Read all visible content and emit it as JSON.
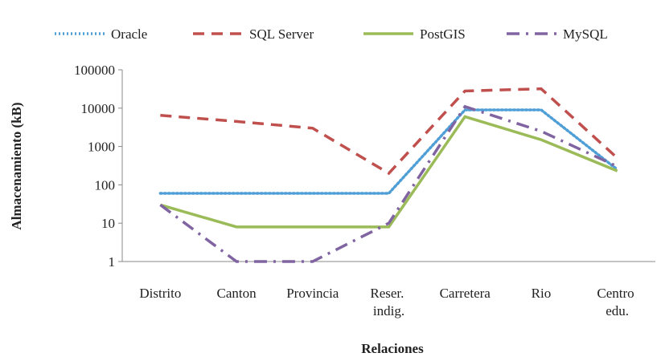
{
  "chart_data": {
    "type": "line",
    "x_label": "Relaciones",
    "y_label": "Almacenamiento (kB)",
    "categories": [
      "Distrito",
      "Canton",
      "Provincia",
      "Reser. indig.",
      "Carretera",
      "Rio",
      "Centro edu."
    ],
    "series": [
      {
        "name": "Oracle",
        "color": "#4f9fd6",
        "style": "dotted",
        "values": [
          60,
          60,
          60,
          60,
          9000,
          9000,
          250
        ]
      },
      {
        "name": "SQL Server",
        "color": "#c0504d",
        "style": "dashed",
        "values": [
          6500,
          4500,
          3000,
          200,
          28000,
          32000,
          500
        ]
      },
      {
        "name": "PostGIS",
        "color": "#9bbb59",
        "style": "solid",
        "values": [
          30,
          8,
          8,
          8,
          6000,
          1500,
          230
        ]
      },
      {
        "name": "MySQL",
        "color": "#8064a2",
        "style": "dashdot",
        "values": [
          30,
          1,
          1,
          10,
          11000,
          2500,
          300
        ]
      }
    ],
    "ylim": [
      1,
      100000
    ],
    "yticks": [
      1,
      10,
      100,
      1000,
      10000,
      100000
    ],
    "log_scale": true,
    "legend": "top"
  }
}
